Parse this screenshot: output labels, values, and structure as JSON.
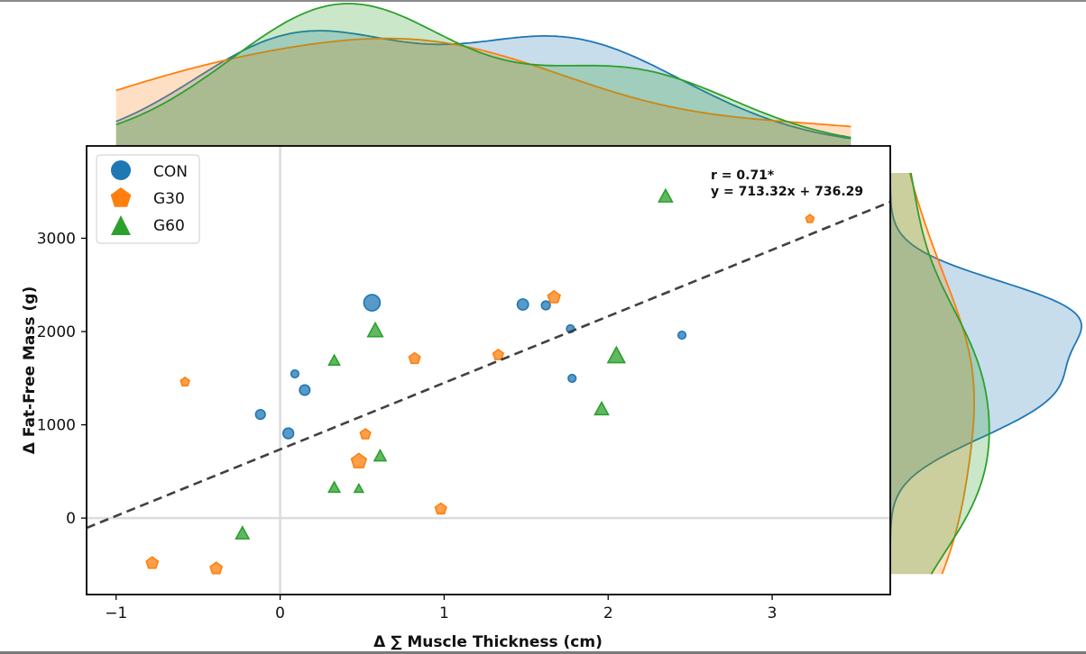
{
  "chart_data": {
    "type": "scatter",
    "title": "",
    "xlabel": "Δ ∑ Muscle Thickness (cm)",
    "ylabel": "Δ Fat-Free Mass (g)",
    "xlim": [
      -1.18,
      3.72
    ],
    "ylim": [
      -820,
      3990
    ],
    "xticks": [
      -1,
      0,
      1,
      2,
      3
    ],
    "xtick_labels": [
      "−1",
      "0",
      "1",
      "2",
      "3"
    ],
    "yticks": [
      0,
      1000,
      2000,
      3000
    ],
    "ytick_labels": [
      "0",
      "1000",
      "2000",
      "3000"
    ],
    "grid": false,
    "reference_lines": {
      "x": 0,
      "y": 0
    },
    "legend": {
      "placement": "top-left",
      "entries": [
        "CON",
        "G30",
        "G60"
      ]
    },
    "annotation": {
      "r_text": "r = 0.71*",
      "eq_text": "y = 713.32x + 736.29",
      "slope": 713.32,
      "intercept": 736.29
    },
    "marginals": {
      "top": "kde of x per group",
      "right": "kde of y per group"
    },
    "series": [
      {
        "name": "CON",
        "marker": "circle",
        "color": "#1f77b4",
        "points": [
          {
            "x": 0.56,
            "y": 2309,
            "size": 5
          },
          {
            "x": 1.48,
            "y": 2290,
            "size": 2.2
          },
          {
            "x": 1.62,
            "y": 2280,
            "size": 1.3
          },
          {
            "x": 1.77,
            "y": 2029,
            "size": 1
          },
          {
            "x": 1.78,
            "y": 1498,
            "size": 1
          },
          {
            "x": 2.45,
            "y": 1961,
            "size": 1
          },
          {
            "x": 0.15,
            "y": 1372,
            "size": 1.9
          },
          {
            "x": 0.09,
            "y": 1546,
            "size": 1
          },
          {
            "x": -0.12,
            "y": 1111,
            "size": 1.6
          },
          {
            "x": 0.05,
            "y": 908,
            "size": 2
          }
        ]
      },
      {
        "name": "G30",
        "marker": "pentagon",
        "color": "#ff7f0e",
        "points": [
          {
            "x": -0.58,
            "y": 1459,
            "size": 1.2
          },
          {
            "x": -0.78,
            "y": -483,
            "size": 2.3
          },
          {
            "x": -0.39,
            "y": -541,
            "size": 2.3
          },
          {
            "x": 0.48,
            "y": 609,
            "size": 3.8
          },
          {
            "x": 0.52,
            "y": 899,
            "size": 1.7
          },
          {
            "x": 0.82,
            "y": 1710,
            "size": 2
          },
          {
            "x": 0.98,
            "y": 97,
            "size": 2
          },
          {
            "x": 1.33,
            "y": 1749,
            "size": 1.7
          },
          {
            "x": 1.67,
            "y": 2367,
            "size": 2.5
          },
          {
            "x": 3.23,
            "y": 3208,
            "size": 1
          }
        ]
      },
      {
        "name": "G60",
        "marker": "triangle",
        "color": "#2ca02c",
        "points": [
          {
            "x": -0.23,
            "y": -174,
            "size": 2.4
          },
          {
            "x": 0.33,
            "y": 1681,
            "size": 1.6
          },
          {
            "x": 0.58,
            "y": 2000,
            "size": 3.2
          },
          {
            "x": 0.61,
            "y": 657,
            "size": 1.9
          },
          {
            "x": 0.33,
            "y": 319,
            "size": 1.7
          },
          {
            "x": 0.48,
            "y": 309,
            "size": 1
          },
          {
            "x": 2.05,
            "y": 1729,
            "size": 4.2
          },
          {
            "x": 1.96,
            "y": 1159,
            "size": 2.6
          },
          {
            "x": 2.35,
            "y": 3440,
            "size": 2.6
          }
        ]
      }
    ]
  }
}
